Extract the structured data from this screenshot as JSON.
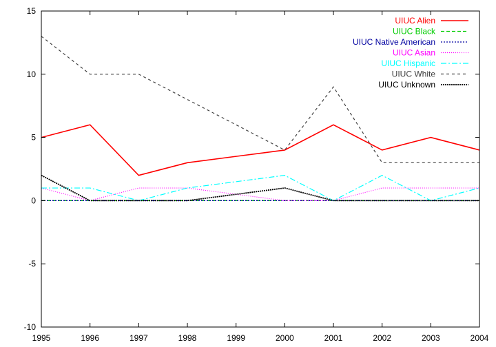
{
  "chart_data": {
    "type": "line",
    "title": "",
    "xlabel": "",
    "ylabel": "",
    "xlim": [
      1995,
      2004
    ],
    "ylim": [
      -10,
      15
    ],
    "xticks": [
      "1995",
      "1996",
      "1997",
      "1998",
      "1999",
      "2000",
      "2001",
      "2002",
      "2003",
      "2004"
    ],
    "yticks": [
      "-10",
      "-5",
      "0",
      "5",
      "10",
      "15"
    ],
    "grid": false,
    "legend_position": "top-right",
    "x": [
      1995,
      1996,
      1997,
      1998,
      1999,
      2000,
      2001,
      2002,
      2003,
      2004
    ],
    "series": [
      {
        "name": "UIUC Alien",
        "color": "#ff0000",
        "style": "solid",
        "values": [
          5,
          6,
          2,
          3,
          3.5,
          4,
          6,
          4,
          5,
          4
        ]
      },
      {
        "name": "UIUC Black",
        "color": "#00cc00",
        "style": "dashed",
        "values": [
          0,
          0,
          0,
          0,
          0,
          0,
          0,
          0,
          0,
          0
        ]
      },
      {
        "name": "UIUC Native American",
        "color": "#0000a0",
        "style": "dotted",
        "values": [
          0,
          0,
          0,
          0,
          0,
          0,
          0,
          0,
          0,
          0
        ]
      },
      {
        "name": "UIUC Asian",
        "color": "#ff00ff",
        "style": "fine-dotted",
        "values": [
          1,
          0,
          1,
          1,
          0.5,
          0,
          0,
          1,
          1,
          1
        ]
      },
      {
        "name": "UIUC Hispanic",
        "color": "#00ffff",
        "style": "dash-dot",
        "values": [
          1,
          1,
          0,
          1,
          1.5,
          2,
          0,
          2,
          0,
          1
        ]
      },
      {
        "name": "UIUC White",
        "color": "#404040",
        "style": "long-dashed",
        "values": [
          13,
          10,
          10,
          8,
          6,
          4,
          9,
          3,
          3,
          3
        ]
      },
      {
        "name": "UIUC Unknown",
        "color": "#000000",
        "style": "dense-dotted",
        "values": [
          2,
          0,
          0,
          0,
          0.5,
          1,
          0,
          0,
          0,
          0
        ]
      }
    ]
  }
}
